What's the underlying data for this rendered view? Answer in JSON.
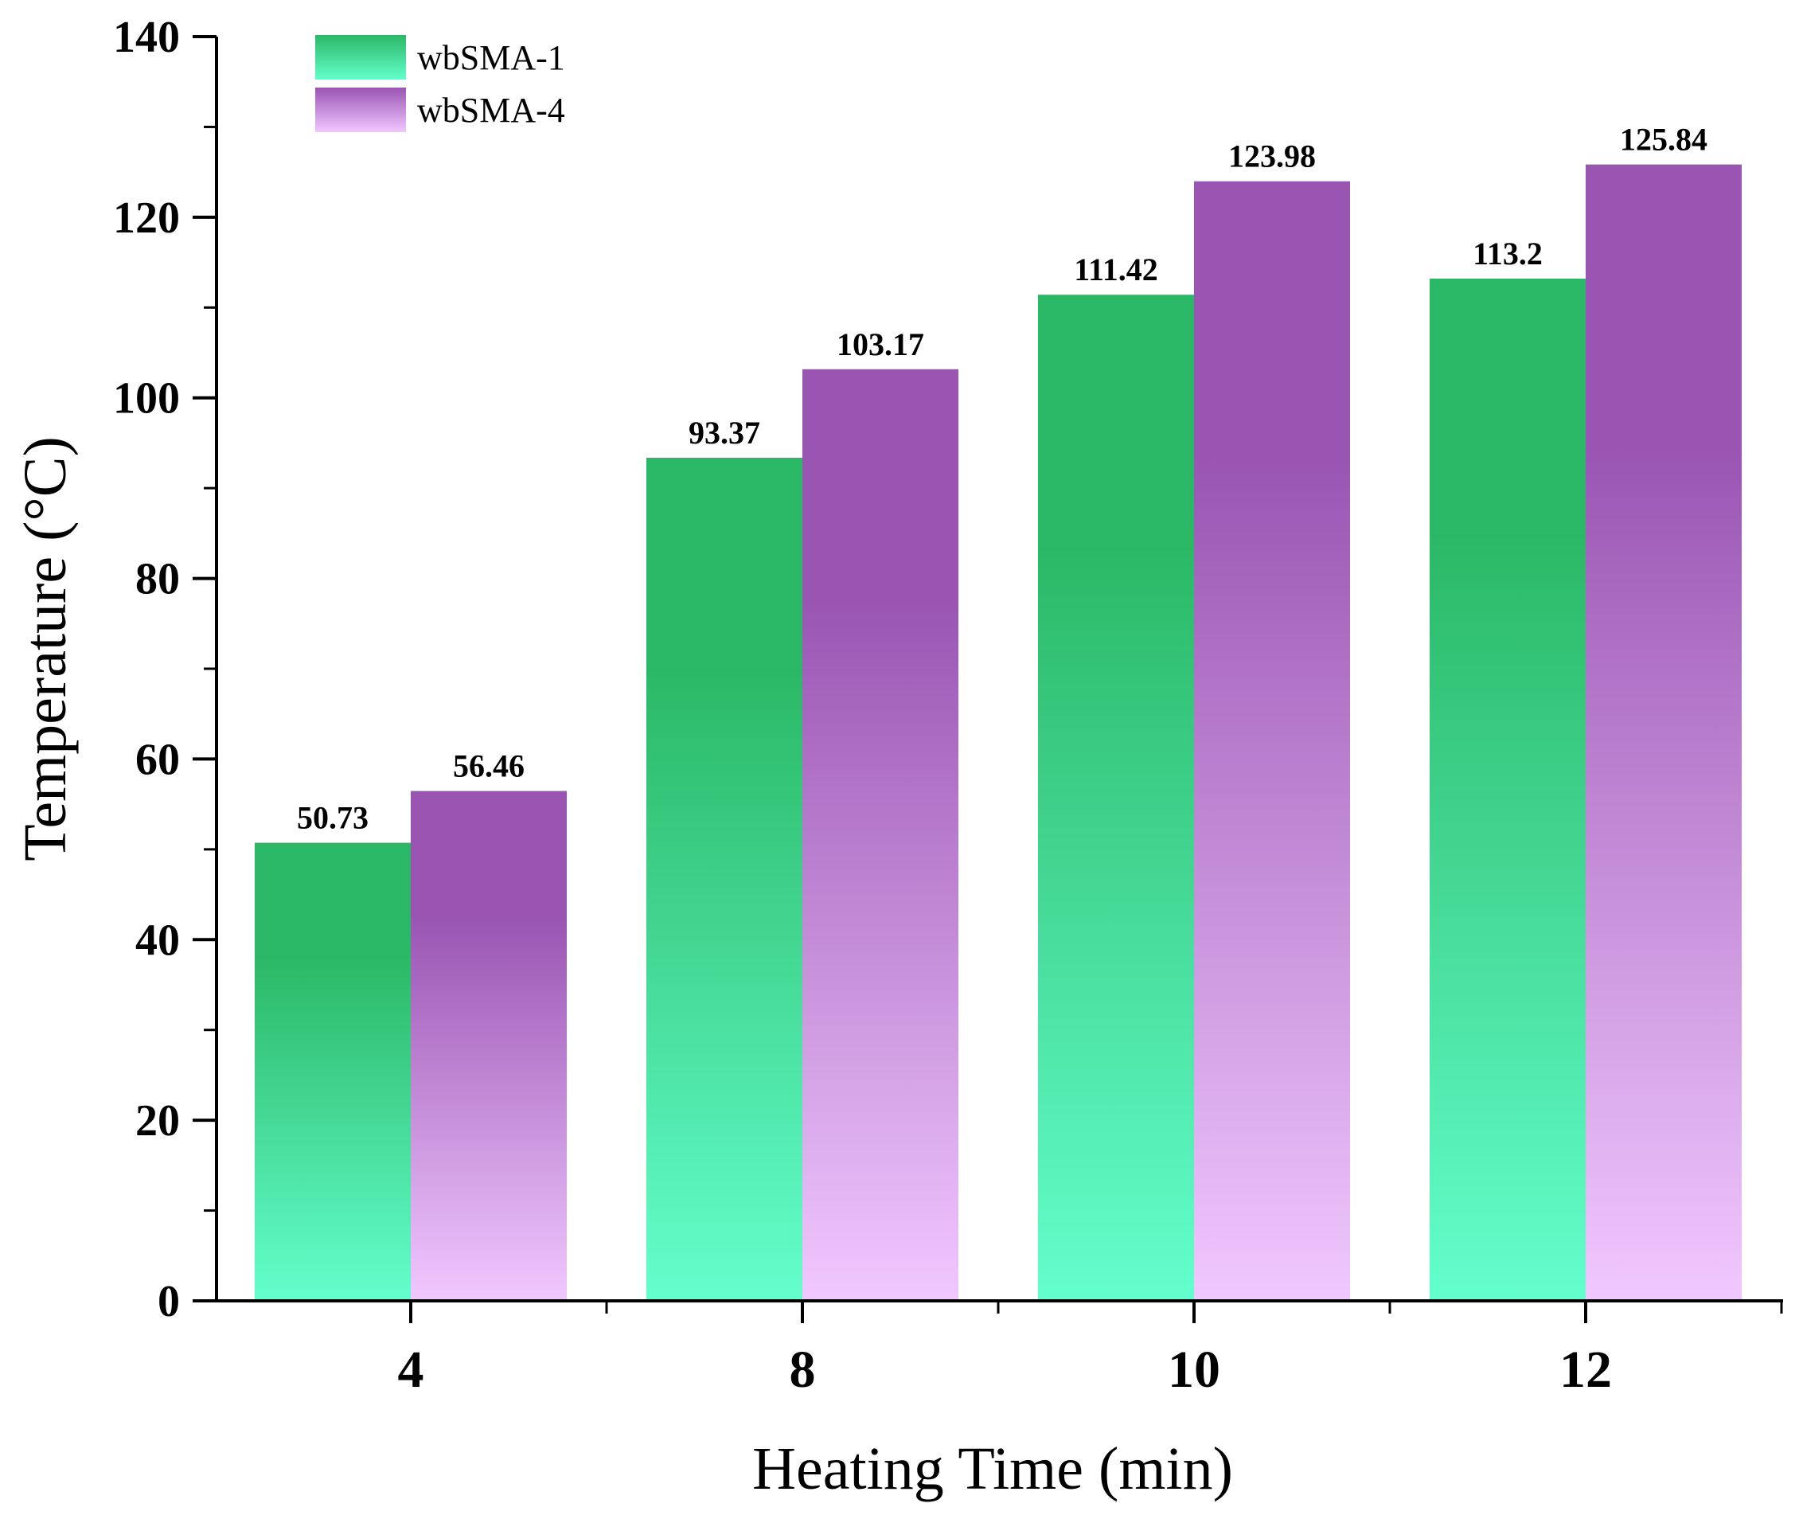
{
  "chart_data": {
    "type": "bar",
    "title": "",
    "xlabel": "Heating Time (min)",
    "ylabel": "Temperature (°C)",
    "categories": [
      "4",
      "8",
      "10",
      "12"
    ],
    "ylim": [
      0,
      140
    ],
    "yticks": [
      0,
      20,
      40,
      60,
      80,
      100,
      120,
      140
    ],
    "grid": false,
    "legend_position": "top-left",
    "series": [
      {
        "name": "wbSMA-1",
        "values": [
          50.73,
          93.37,
          111.42,
          113.2
        ],
        "labels": [
          "50.73",
          "93.37",
          "111.42",
          "113.2"
        ],
        "color_top": "#2bb866",
        "color_bottom": "#63ffcd"
      },
      {
        "name": "wbSMA-4",
        "values": [
          56.46,
          103.17,
          123.98,
          125.84
        ],
        "labels": [
          "56.46",
          "103.17",
          "123.98",
          "125.84"
        ],
        "color_top": "#9a55b3",
        "color_bottom": "#f1c8ff"
      }
    ]
  }
}
